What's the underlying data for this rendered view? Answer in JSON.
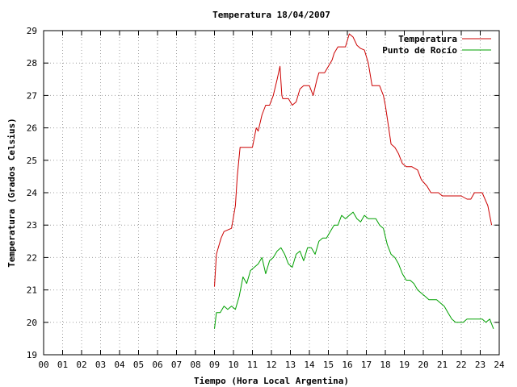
{
  "chart_data": {
    "type": "line",
    "title": "Temperatura 18/04/2007",
    "xlabel": "Tiempo (Hora Local Argentina)",
    "ylabel": "Temperatura (Grados Celsius)",
    "xlim": [
      0,
      24
    ],
    "ylim": [
      19,
      29
    ],
    "x_ticks": [
      "00",
      "01",
      "02",
      "03",
      "04",
      "05",
      "06",
      "07",
      "08",
      "09",
      "10",
      "11",
      "12",
      "13",
      "14",
      "15",
      "16",
      "17",
      "18",
      "19",
      "20",
      "21",
      "22",
      "23",
      "24"
    ],
    "y_ticks": [
      "19",
      "20",
      "21",
      "22",
      "23",
      "24",
      "25",
      "26",
      "27",
      "28",
      "29"
    ],
    "grid": true,
    "legend_position": "top-right",
    "series": [
      {
        "name": "Temperatura",
        "color": "#cc0000",
        "x": [
          9.0,
          9.1,
          9.2,
          9.35,
          9.5,
          9.7,
          9.9,
          10.1,
          10.2,
          10.35,
          10.45,
          10.5,
          10.8,
          11.0,
          11.2,
          11.3,
          11.5,
          11.7,
          11.9,
          12.1,
          12.3,
          12.45,
          12.55,
          12.6,
          12.9,
          13.1,
          13.3,
          13.5,
          13.7,
          14.0,
          14.2,
          14.4,
          14.5,
          14.6,
          14.8,
          15.0,
          15.2,
          15.3,
          15.5,
          15.7,
          15.9,
          16.1,
          16.3,
          16.5,
          16.7,
          16.9,
          17.1,
          17.3,
          17.5,
          17.7,
          17.9,
          18.0,
          18.1,
          18.3,
          18.5,
          18.7,
          18.9,
          19.1,
          19.4,
          19.7,
          19.9,
          20.2,
          20.4,
          20.6,
          20.8,
          21.0,
          21.3,
          21.5,
          21.6,
          21.8,
          22.0,
          22.3,
          22.5,
          22.7,
          22.9,
          23.1,
          23.4,
          23.6
        ],
        "values": [
          21.1,
          22.1,
          22.3,
          22.6,
          22.8,
          22.85,
          22.9,
          23.6,
          24.5,
          25.4,
          25.4,
          25.4,
          25.4,
          25.4,
          26.0,
          25.9,
          26.4,
          26.7,
          26.7,
          27.0,
          27.5,
          27.9,
          27.0,
          26.9,
          26.9,
          26.7,
          26.8,
          27.2,
          27.3,
          27.3,
          27.0,
          27.5,
          27.7,
          27.7,
          27.7,
          27.9,
          28.1,
          28.3,
          28.5,
          28.5,
          28.5,
          28.9,
          28.8,
          28.55,
          28.45,
          28.4,
          28.0,
          27.3,
          27.3,
          27.3,
          27.0,
          26.7,
          26.3,
          25.5,
          25.4,
          25.2,
          24.9,
          24.8,
          24.8,
          24.7,
          24.4,
          24.2,
          24.0,
          24.0,
          24.0,
          23.9,
          23.9,
          23.9,
          23.9,
          23.9,
          23.9,
          23.8,
          23.8,
          24.0,
          24.0,
          24.0,
          23.6,
          23.0
        ]
      },
      {
        "name": "Punto de Rocío",
        "color": "#00a000",
        "x": [
          9.0,
          9.1,
          9.3,
          9.5,
          9.7,
          9.9,
          10.1,
          10.3,
          10.5,
          10.7,
          10.9,
          11.1,
          11.3,
          11.5,
          11.7,
          11.9,
          12.1,
          12.3,
          12.5,
          12.7,
          12.9,
          13.1,
          13.3,
          13.5,
          13.7,
          13.9,
          14.1,
          14.3,
          14.5,
          14.7,
          14.9,
          15.1,
          15.3,
          15.5,
          15.7,
          15.9,
          16.1,
          16.3,
          16.5,
          16.7,
          16.9,
          17.1,
          17.3,
          17.5,
          17.7,
          17.9,
          18.1,
          18.3,
          18.5,
          18.7,
          18.9,
          19.1,
          19.3,
          19.5,
          19.7,
          19.9,
          20.1,
          20.3,
          20.5,
          20.7,
          20.9,
          21.1,
          21.3,
          21.5,
          21.7,
          21.9,
          22.1,
          22.3,
          22.5,
          22.7,
          22.9,
          23.1,
          23.3,
          23.5,
          23.7
        ],
        "values": [
          19.8,
          20.3,
          20.3,
          20.5,
          20.4,
          20.5,
          20.4,
          20.8,
          21.4,
          21.2,
          21.6,
          21.7,
          21.8,
          22.0,
          21.5,
          21.9,
          22.0,
          22.2,
          22.3,
          22.1,
          21.8,
          21.7,
          22.1,
          22.2,
          21.9,
          22.3,
          22.3,
          22.1,
          22.5,
          22.6,
          22.6,
          22.8,
          23.0,
          23.0,
          23.3,
          23.2,
          23.3,
          23.4,
          23.2,
          23.1,
          23.3,
          23.2,
          23.2,
          23.2,
          23.0,
          22.9,
          22.4,
          22.1,
          22.0,
          21.8,
          21.5,
          21.3,
          21.3,
          21.2,
          21.0,
          20.9,
          20.8,
          20.7,
          20.7,
          20.7,
          20.6,
          20.5,
          20.3,
          20.1,
          20.0,
          20.0,
          20.0,
          20.1,
          20.1,
          20.1,
          20.1,
          20.1,
          20.0,
          20.1,
          19.8
        ]
      }
    ]
  }
}
